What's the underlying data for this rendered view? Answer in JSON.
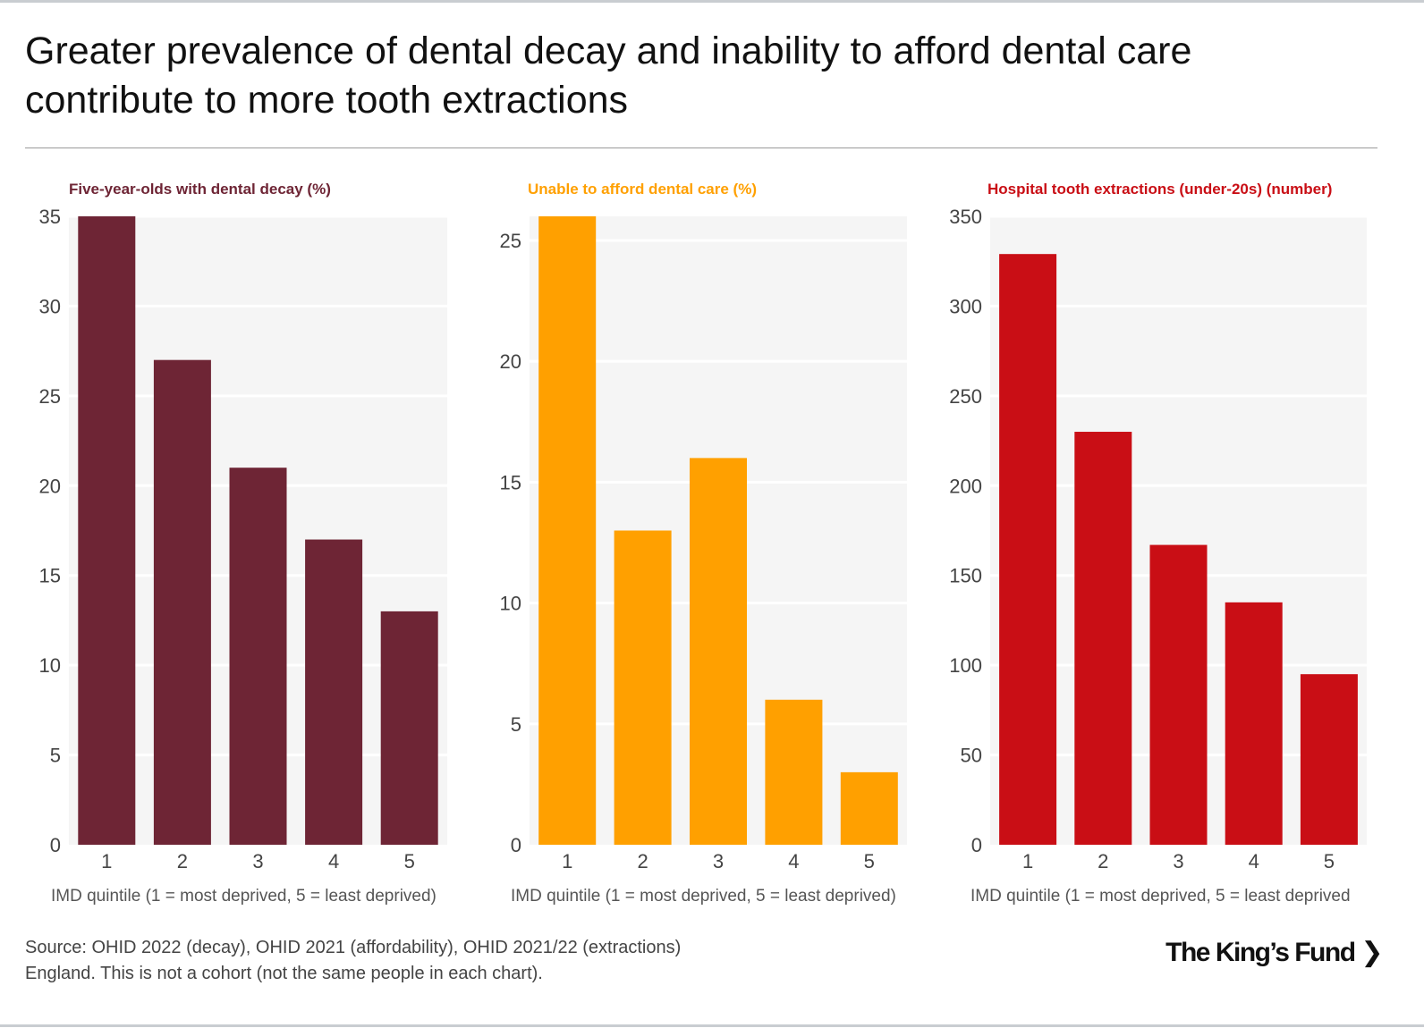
{
  "title": "Greater prevalence of dental decay and inability to afford dental care contribute to more tooth extractions",
  "source_line1": "Source: OHID 2022 (decay), OHID 2021 (affordability), OHID 2021/22 (extractions)",
  "source_line2": "England. This is not a cohort (not the same people in each chart).",
  "logo": "The King’s Fund ❯",
  "chart_data": [
    {
      "type": "bar",
      "title": "Five-year-olds with dental decay (%)",
      "color": "#6e2535",
      "xlabel": "IMD quintile (1 = most deprived, 5 = least deprived)",
      "ylabel": "",
      "categories": [
        "1",
        "2",
        "3",
        "4",
        "5"
      ],
      "values": [
        35,
        27,
        21,
        17,
        13
      ],
      "ylim": [
        0,
        35
      ],
      "yticks": [
        0,
        5,
        10,
        15,
        20,
        25,
        30,
        35
      ]
    },
    {
      "type": "bar",
      "title": "Unable to afford dental care (%)",
      "color": "#ffa000",
      "xlabel": "IMD quintile (1 = most deprived, 5 = least deprived)",
      "ylabel": "",
      "categories": [
        "1",
        "2",
        "3",
        "4",
        "5"
      ],
      "values": [
        26,
        13,
        16,
        6,
        3
      ],
      "ylim": [
        0,
        26
      ],
      "yticks": [
        0,
        5,
        10,
        15,
        20,
        25
      ]
    },
    {
      "type": "bar",
      "title": "Hospital tooth extractions (under-20s) (number)",
      "color": "#c90e15",
      "xlabel": "IMD quintile (1 = most deprived, 5 = least deprived",
      "ylabel": "",
      "categories": [
        "1",
        "2",
        "3",
        "4",
        "5"
      ],
      "values": [
        329,
        230,
        167,
        135,
        95
      ],
      "ylim": [
        0,
        350
      ],
      "yticks": [
        0,
        50,
        100,
        150,
        200,
        250,
        300,
        350
      ]
    }
  ]
}
